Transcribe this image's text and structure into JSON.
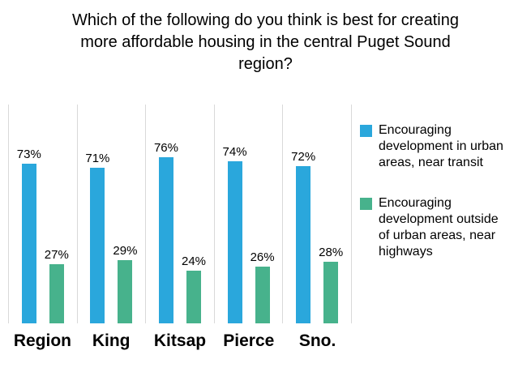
{
  "chart_data": {
    "type": "bar",
    "title": "Which of the following do you think is best for creating more affordable housing in the central Puget Sound region?",
    "categories": [
      "Region",
      "King",
      "Kitsap",
      "Pierce",
      "Sno."
    ],
    "series": [
      {
        "name": "Encouraging development in urban areas, near transit",
        "color": "#2aa7dc",
        "values": [
          73,
          71,
          76,
          74,
          72
        ]
      },
      {
        "name": "Encouraging development outside of urban areas, near highways",
        "color": "#47b28c",
        "values": [
          27,
          29,
          24,
          26,
          28
        ]
      }
    ],
    "value_suffix": "%",
    "ylim": [
      0,
      100
    ],
    "grid": "vertical-category-separators",
    "gridline_color": "#d9d9d9",
    "legend_position": "right"
  }
}
